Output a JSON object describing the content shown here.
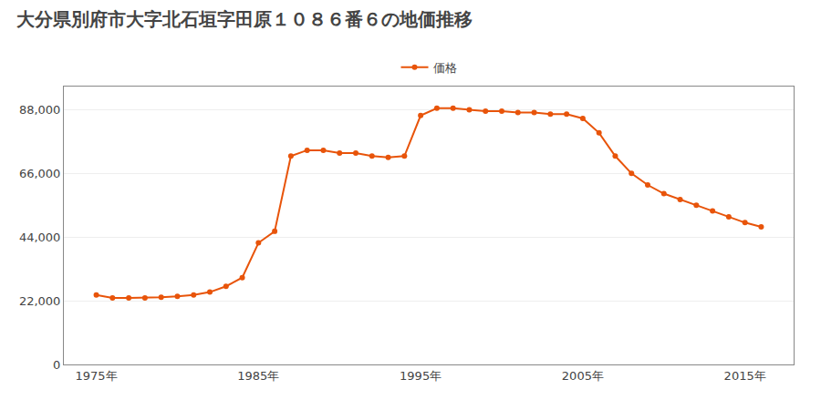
{
  "chart_data": {
    "type": "line",
    "title": "大分県別府市大字北石垣字田原１０８６番６の地価推移",
    "x": [
      1975,
      1976,
      1977,
      1978,
      1979,
      1980,
      1981,
      1982,
      1983,
      1984,
      1985,
      1986,
      1987,
      1988,
      1989,
      1990,
      1991,
      1992,
      1993,
      1994,
      1995,
      1996,
      1997,
      1998,
      1999,
      2000,
      2001,
      2002,
      2003,
      2004,
      2005,
      2006,
      2007,
      2008,
      2009,
      2010,
      2011,
      2012,
      2013,
      2014,
      2015,
      2016
    ],
    "series": [
      {
        "name": "価格",
        "color": "#E8540A",
        "values": [
          24000,
          23000,
          23000,
          23000,
          23200,
          23500,
          24000,
          25000,
          27000,
          30000,
          42000,
          46000,
          72000,
          74000,
          74000,
          73000,
          73000,
          72000,
          71500,
          72000,
          86000,
          88500,
          88500,
          88000,
          87500,
          87500,
          87000,
          87000,
          86500,
          86500,
          85000,
          80000,
          72000,
          66000,
          62000,
          59000,
          57000,
          55000,
          53000,
          51000,
          49000,
          47500
        ]
      }
    ],
    "xlim": [
      1973,
      2018
    ],
    "xticks": [
      {
        "value": 1975,
        "label": "1975年"
      },
      {
        "value": 1985,
        "label": "1985年"
      },
      {
        "value": 1995,
        "label": "1995年"
      },
      {
        "value": 2005,
        "label": "2005年"
      },
      {
        "value": 2015,
        "label": "2015年"
      }
    ],
    "ylim": [
      0,
      96000
    ],
    "yticks": [
      0,
      {
        "value": 22000,
        "label": "22,000"
      },
      {
        "value": 44000,
        "label": "44,000"
      },
      {
        "value": 66000,
        "label": "66,000"
      },
      {
        "value": 88000,
        "label": "88,000"
      }
    ],
    "grid": true,
    "marker": "circle",
    "legend": "top"
  }
}
